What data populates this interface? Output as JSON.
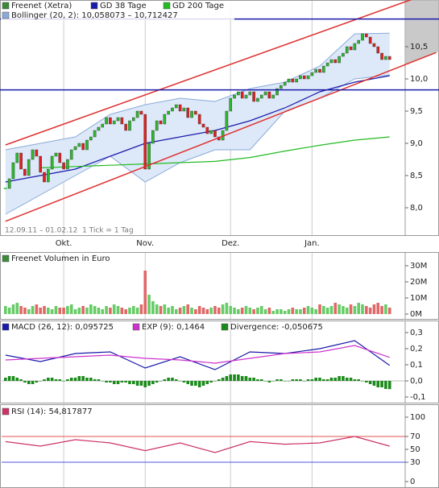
{
  "chart_data": [
    {
      "type": "candlestick",
      "name": "Freenet (Xetra)",
      "color": "#3a8a3a",
      "up_color": "#2db82d",
      "down_color": "#e02020",
      "close": [
        8.3,
        8.45,
        8.7,
        8.85,
        8.6,
        8.5,
        8.75,
        8.9,
        8.8,
        8.55,
        8.4,
        8.6,
        8.8,
        8.85,
        8.7,
        8.6,
        8.75,
        8.9,
        8.95,
        9.0,
        8.9,
        9.05,
        9.1,
        9.2,
        9.25,
        9.3,
        9.4,
        9.3,
        9.35,
        9.4,
        9.3,
        9.2,
        9.35,
        9.4,
        9.5,
        9.45,
        8.6,
        9.0,
        9.2,
        9.35,
        9.3,
        9.45,
        9.5,
        9.55,
        9.6,
        9.5,
        9.55,
        9.4,
        9.5,
        9.45,
        9.3,
        9.25,
        9.15,
        9.2,
        9.1,
        9.05,
        9.2,
        9.5,
        9.7,
        9.75,
        9.8,
        9.7,
        9.75,
        9.8,
        9.65,
        9.7,
        9.75,
        9.8,
        9.7,
        9.75,
        9.85,
        9.9,
        9.95,
        10.0,
        9.95,
        10.0,
        10.05,
        10.0,
        10.05,
        10.1,
        10.15,
        10.1,
        10.2,
        10.25,
        10.3,
        10.25,
        10.35,
        10.4,
        10.5,
        10.45,
        10.55,
        10.6,
        10.7,
        10.65,
        10.55,
        10.5,
        10.4,
        10.3,
        10.35,
        10.3
      ],
      "xlim": [
        -1,
        103
      ],
      "ylim": [
        7.6,
        11.2
      ],
      "yticks": [
        {
          "value": 8,
          "label": "8,0"
        },
        {
          "value": 8.5,
          "label": "8,5"
        },
        {
          "value": 9,
          "label": "9,0"
        },
        {
          "value": 9.5,
          "label": "9,5"
        },
        {
          "value": 10,
          "label": "10,0"
        },
        {
          "value": 10.5,
          "label": "10,5"
        }
      ],
      "xticks": [
        {
          "value": 15,
          "label": "Okt."
        },
        {
          "value": 36,
          "label": "Nov."
        },
        {
          "value": 58,
          "label": "Dez."
        },
        {
          "value": 79,
          "label": "Jan."
        }
      ],
      "series": [
        {
          "name": "GD 38 Tage",
          "color": "#1a1aaa",
          "x": [
            0,
            9,
            18,
            27,
            36,
            45,
            54,
            63,
            72,
            81,
            90,
            99
          ],
          "values": [
            8.4,
            8.5,
            8.6,
            8.8,
            9.0,
            9.1,
            9.2,
            9.35,
            9.55,
            9.8,
            9.95,
            10.05
          ]
        },
        {
          "name": "GD 200 Tage",
          "color": "#22bb22",
          "x": [
            9,
            18,
            27,
            36,
            45,
            54,
            63,
            72,
            81,
            90,
            99
          ],
          "values": [
            8.62,
            8.64,
            8.66,
            8.68,
            8.7,
            8.72,
            8.78,
            8.88,
            8.97,
            9.05,
            9.1
          ]
        }
      ],
      "band": {
        "name": "Bollinger (20, 2): 10,058073 – 10,712427",
        "color": "#8aaad8",
        "fill": "#dde9f8",
        "x": [
          0,
          9,
          18,
          27,
          36,
          45,
          54,
          63,
          72,
          81,
          90,
          99
        ],
        "upper": [
          8.9,
          9.0,
          9.1,
          9.45,
          9.6,
          9.7,
          9.65,
          9.85,
          9.95,
          10.2,
          10.7,
          10.71
        ],
        "lower": [
          7.9,
          8.2,
          8.5,
          8.8,
          8.4,
          8.7,
          8.9,
          8.9,
          9.5,
          9.7,
          10.0,
          10.06
        ]
      },
      "channel": {
        "color": "#e03030",
        "x": [
          0,
          111
        ],
        "upper": [
          8.975,
          11.37
        ],
        "lower": [
          7.79,
          10.41
        ]
      },
      "levels": [
        10.93,
        9.83
      ],
      "level_color": "#1a1aaa",
      "annotation": "12.09.11 – 01.02.12  1 Tick = 1 Tag"
    },
    {
      "type": "bar",
      "name": "Freenet Volumen in Euro",
      "color": "#3a8a3a",
      "up_color": "#66cc66",
      "down_color": "#e06868",
      "values": [
        5,
        4,
        6,
        7,
        5,
        4,
        3,
        5,
        6,
        4,
        5,
        4,
        3,
        5,
        4,
        4,
        5,
        6,
        3,
        4,
        5,
        4,
        6,
        5,
        4,
        3,
        5,
        4,
        6,
        5,
        4,
        3,
        4,
        5,
        4,
        6,
        27,
        12,
        8,
        6,
        5,
        6,
        4,
        5,
        3,
        4,
        5,
        6,
        4,
        3,
        5,
        4,
        3,
        4,
        5,
        4,
        6,
        7,
        5,
        4,
        3,
        4,
        5,
        4,
        3,
        4,
        5,
        3,
        4,
        2,
        3,
        3,
        2,
        3,
        4,
        3,
        3,
        4,
        5,
        4,
        3,
        6,
        5,
        4,
        5,
        7,
        6,
        5,
        4,
        6,
        5,
        7,
        6,
        5,
        4,
        6,
        7,
        5,
        6,
        4
      ],
      "xlim": [
        -1,
        103
      ],
      "ylim": [
        0,
        31.5
      ],
      "yticks": [
        {
          "value": 0,
          "label": "0M"
        },
        {
          "value": 10,
          "label": "10M"
        },
        {
          "value": 20,
          "label": "20M"
        },
        {
          "value": 30,
          "label": "30M"
        }
      ]
    },
    {
      "type": "line",
      "xlim": [
        -1,
        103
      ],
      "ylim": [
        -0.1,
        0.3
      ],
      "yticks": [
        {
          "value": -0.1,
          "label": "-0,1"
        },
        {
          "value": 0,
          "label": "0,0"
        },
        {
          "value": 0.1,
          "label": "0,1"
        },
        {
          "value": 0.2,
          "label": "0,2"
        },
        {
          "value": 0.3,
          "label": "0,3"
        }
      ],
      "series": [
        {
          "name": "MACD (26, 12): 0,095725",
          "color": "#1a1aaa",
          "x": [
            0,
            9,
            18,
            27,
            36,
            45,
            54,
            63,
            72,
            81,
            90,
            99
          ],
          "values": [
            0.16,
            0.12,
            0.17,
            0.18,
            0.08,
            0.15,
            0.07,
            0.18,
            0.17,
            0.2,
            0.25,
            0.096
          ]
        },
        {
          "name": "EXP (9): 0,1464",
          "color": "#cc33cc",
          "x": [
            0,
            9,
            18,
            27,
            36,
            45,
            54,
            63,
            72,
            81,
            90,
            99
          ],
          "values": [
            0.13,
            0.14,
            0.15,
            0.16,
            0.14,
            0.13,
            0.11,
            0.14,
            0.17,
            0.18,
            0.22,
            0.146
          ]
        }
      ],
      "bars": {
        "name": "Divergence: -0,050675",
        "color": "#1a8a1a",
        "values": [
          0.02,
          0.03,
          0.03,
          0.02,
          0.01,
          -0.01,
          -0.02,
          -0.02,
          -0.01,
          0.0,
          0.01,
          0.02,
          0.02,
          0.01,
          0.01,
          0.0,
          0.01,
          0.02,
          0.02,
          0.03,
          0.03,
          0.02,
          0.02,
          0.01,
          0.01,
          0.0,
          -0.01,
          -0.01,
          -0.02,
          -0.02,
          -0.01,
          -0.01,
          -0.02,
          -0.02,
          -0.03,
          -0.03,
          -0.04,
          -0.03,
          -0.02,
          -0.01,
          0.0,
          0.01,
          0.02,
          0.02,
          0.01,
          0.0,
          -0.01,
          -0.02,
          -0.03,
          -0.03,
          -0.04,
          -0.03,
          -0.02,
          -0.01,
          0.0,
          0.01,
          0.02,
          0.03,
          0.04,
          0.04,
          0.04,
          0.03,
          0.03,
          0.02,
          0.02,
          0.01,
          0.01,
          0.0,
          -0.01,
          0.0,
          0.01,
          0.01,
          0.0,
          0.0,
          0.01,
          0.01,
          0.01,
          0.0,
          0.01,
          0.01,
          0.02,
          0.02,
          0.01,
          0.01,
          0.02,
          0.02,
          0.03,
          0.03,
          0.02,
          0.02,
          0.01,
          0.01,
          0.0,
          -0.01,
          -0.02,
          -0.03,
          -0.04,
          -0.04,
          -0.05,
          -0.051
        ]
      }
    },
    {
      "type": "line",
      "xlim": [
        -1,
        103
      ],
      "ylim": [
        0,
        100
      ],
      "yticks": [
        0,
        30,
        50,
        70,
        100
      ],
      "series": [
        {
          "name": "RSI (14): 54,817877",
          "color": "#cc3366",
          "x": [
            0,
            9,
            18,
            27,
            36,
            45,
            54,
            63,
            72,
            81,
            90,
            99
          ],
          "values": [
            62,
            55,
            65,
            60,
            48,
            60,
            45,
            62,
            58,
            60,
            70,
            55
          ]
        }
      ],
      "levels": [
        70,
        30
      ],
      "level_colors": [
        "#e05050",
        "#5050e0"
      ]
    }
  ]
}
